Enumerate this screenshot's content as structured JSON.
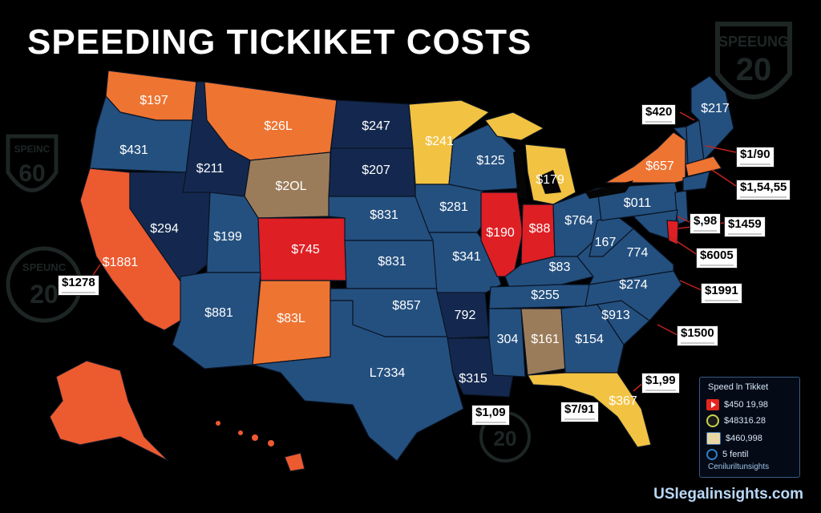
{
  "title": "SPEEDING TICKIKET COSTS",
  "colors": {
    "background": "#000000",
    "navy": "#14284f",
    "blue": "#24507f",
    "orange": "#ee7432",
    "red_orange": "#ec5a30",
    "red": "#de1f24",
    "yellow": "#f2c242",
    "tan": "#9b7c5a",
    "lake": "#0a0a0a"
  },
  "states": [
    {
      "name": "Washington",
      "fill": "orange",
      "label": "$197"
    },
    {
      "name": "Oregon",
      "fill": "blue",
      "label": "$431"
    },
    {
      "name": "California",
      "fill": "red_orange",
      "label": "$1881"
    },
    {
      "name": "Idaho",
      "fill": "navy",
      "label": "$211"
    },
    {
      "name": "Nevada",
      "fill": "navy",
      "label": "$294"
    },
    {
      "name": "Montana",
      "fill": "orange",
      "label": "$26L"
    },
    {
      "name": "Wyoming",
      "fill": "tan",
      "label": "$2OL"
    },
    {
      "name": "Utah",
      "fill": "blue",
      "label": "$199"
    },
    {
      "name": "Colorado",
      "fill": "red",
      "label": "$745"
    },
    {
      "name": "Arizona",
      "fill": "blue",
      "label": "$881"
    },
    {
      "name": "New Mexico",
      "fill": "orange",
      "label": "$83L"
    },
    {
      "name": "North Dakota",
      "fill": "navy",
      "label": "$247"
    },
    {
      "name": "South Dakota",
      "fill": "navy",
      "label": "$207"
    },
    {
      "name": "Nebraska",
      "fill": "blue",
      "label": "$831"
    },
    {
      "name": "Kansas",
      "fill": "blue",
      "label": "$831"
    },
    {
      "name": "Oklahoma",
      "fill": "blue",
      "label": "$857"
    },
    {
      "name": "Texas",
      "fill": "blue",
      "label": "L7334"
    },
    {
      "name": "Minnesota",
      "fill": "yellow",
      "label": "$241"
    },
    {
      "name": "Iowa",
      "fill": "blue",
      "label": "$281"
    },
    {
      "name": "Missouri",
      "fill": "blue",
      "label": "$341"
    },
    {
      "name": "Arkansas",
      "fill": "navy",
      "label": "792"
    },
    {
      "name": "Louisiana",
      "fill": "navy",
      "label": "$315"
    },
    {
      "name": "Wisconsin",
      "fill": "blue",
      "label": "$125"
    },
    {
      "name": "Michigan",
      "fill": "yellow",
      "label": "$179"
    },
    {
      "name": "Illinois",
      "fill": "red",
      "label": "$190"
    },
    {
      "name": "Indiana",
      "fill": "red",
      "label": "$88"
    },
    {
      "name": "Ohio",
      "fill": "blue",
      "label": "$764"
    },
    {
      "name": "Kentucky",
      "fill": "blue",
      "label": "$83"
    },
    {
      "name": "Tennessee",
      "fill": "blue",
      "label": "$255"
    },
    {
      "name": "Mississippi",
      "fill": "blue",
      "label": "304"
    },
    {
      "name": "Alabama",
      "fill": "tan",
      "label": "$161"
    },
    {
      "name": "Georgia",
      "fill": "blue",
      "label": "$154"
    },
    {
      "name": "Florida",
      "fill": "yellow",
      "label": "$367"
    },
    {
      "name": "South Carolina",
      "fill": "blue",
      "label": "$913"
    },
    {
      "name": "North Carolina",
      "fill": "blue",
      "label": "$274"
    },
    {
      "name": "Virginia",
      "fill": "blue",
      "label": "774"
    },
    {
      "name": "West Virginia",
      "fill": "blue",
      "label": "167"
    },
    {
      "name": "Pennsylvania",
      "fill": "blue",
      "label": "$011"
    },
    {
      "name": "New York",
      "fill": "orange",
      "label": "$657"
    },
    {
      "name": "Maine",
      "fill": "blue",
      "label": "$217"
    },
    {
      "name": "New Hampshire",
      "fill": "blue",
      "label": ""
    },
    {
      "name": "Vermont",
      "fill": "blue",
      "label": ""
    },
    {
      "name": "Massachusetts",
      "fill": "orange",
      "label": ""
    },
    {
      "name": "Connecticut",
      "fill": "blue",
      "label": ""
    },
    {
      "name": "New Jersey",
      "fill": "blue",
      "label": ""
    },
    {
      "name": "Maryland",
      "fill": "blue",
      "label": ""
    },
    {
      "name": "Delaware",
      "fill": "red",
      "label": ""
    },
    {
      "name": "Alaska",
      "fill": "red_orange",
      "label": ""
    },
    {
      "name": "Hawaii",
      "fill": "red_orange",
      "label": ""
    }
  ],
  "callouts": [
    {
      "id": "maine",
      "text": "$420"
    },
    {
      "id": "nh",
      "text": "$1/90"
    },
    {
      "id": "ma",
      "text": "$1,54,55"
    },
    {
      "id": "nj",
      "text": "$,98"
    },
    {
      "id": "de",
      "text": "$1459"
    },
    {
      "id": "md",
      "text": "$6005"
    },
    {
      "id": "va",
      "text": "$1991"
    },
    {
      "id": "sc",
      "text": "$1500"
    },
    {
      "id": "fl",
      "text": "$1,99"
    },
    {
      "id": "ca",
      "text": "$1278"
    },
    {
      "id": "la",
      "text": "$1,09"
    },
    {
      "id": "al",
      "text": "$7/91"
    }
  ],
  "badges": [
    "SPEEUNG",
    "20",
    "SPEINC",
    "60",
    "SPEUNC",
    "20",
    "20"
  ],
  "legend": {
    "title": "Speed ln Tikket",
    "rows": [
      {
        "icon": "youtube-icon",
        "color": "#e3261f",
        "value": "$450 19,98"
      },
      {
        "icon": "spiral-icon",
        "color": "#1b1b1b",
        "value": "$48316.28"
      },
      {
        "icon": "folder-icon",
        "color": "#e9d8a6",
        "value": "$460,998"
      },
      {
        "icon": "circle-icon",
        "color": "#2d7ec7",
        "value": "5 fentil"
      }
    ],
    "note": "Ceniluriltunsights"
  },
  "watermark": "USlegalinsights.com"
}
